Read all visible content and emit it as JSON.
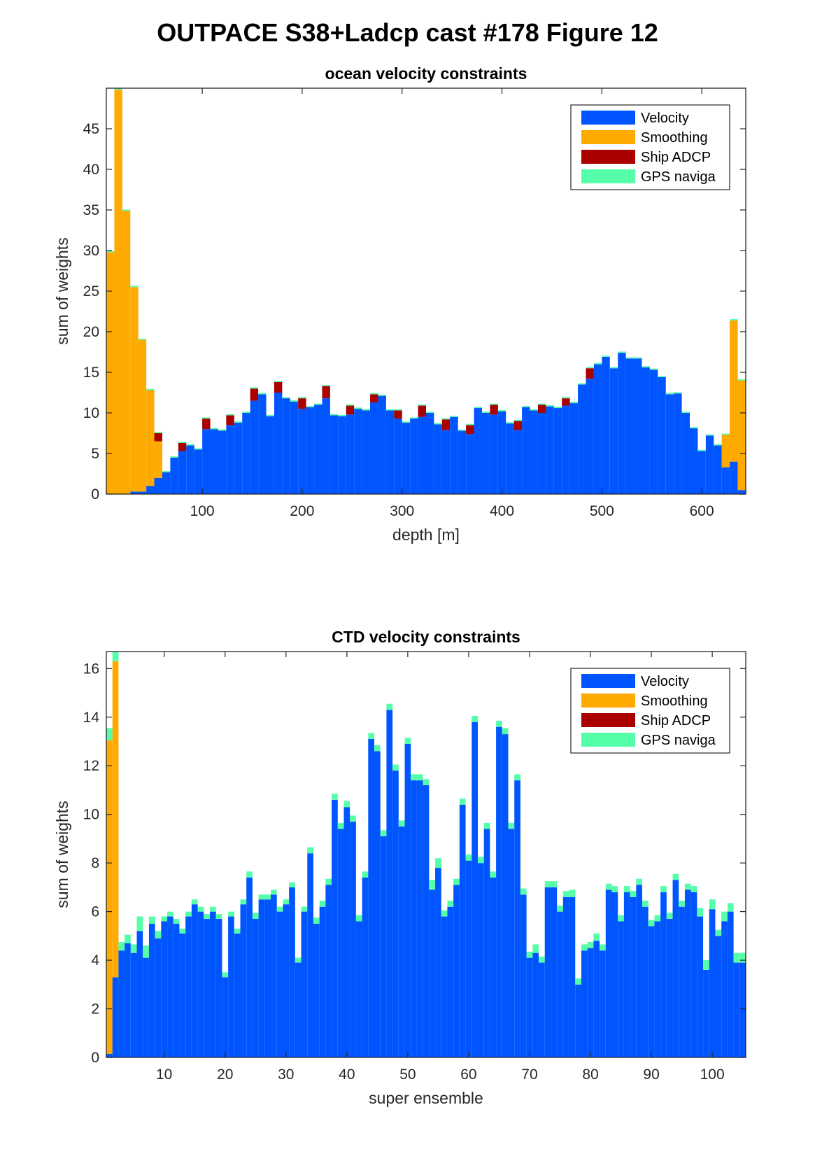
{
  "figure_title": "OUTPACE S38+Ladcp cast #178  Figure 12",
  "colors": {
    "velocity": "#0055ff",
    "smoothing": "#ffaa00",
    "ship_adcp": "#aa0000",
    "gps": "#55ffaa"
  },
  "legend_labels": [
    "Velocity",
    "Smoothing",
    "Ship ADCP",
    "GPS naviga"
  ],
  "chart_data": [
    {
      "type": "bar",
      "stacked": true,
      "title": "ocean velocity constraints",
      "xlabel": "depth [m]",
      "ylabel": "sum of weights",
      "xlim": [
        4,
        644
      ],
      "ylim": [
        0,
        50
      ],
      "xticks": [
        100,
        200,
        300,
        400,
        500,
        600
      ],
      "yticks": [
        0,
        5,
        10,
        15,
        20,
        25,
        30,
        35,
        40,
        45
      ],
      "bar_width": 8,
      "legend_location": "top-right",
      "x": [
        8,
        16,
        24,
        32,
        40,
        48,
        56,
        64,
        72,
        80,
        88,
        96,
        104,
        112,
        120,
        128,
        136,
        144,
        152,
        160,
        168,
        176,
        184,
        192,
        200,
        208,
        216,
        224,
        232,
        240,
        248,
        256,
        264,
        272,
        280,
        288,
        296,
        304,
        312,
        320,
        328,
        336,
        344,
        352,
        360,
        368,
        376,
        384,
        392,
        400,
        408,
        416,
        424,
        432,
        440,
        448,
        456,
        464,
        472,
        480,
        488,
        496,
        504,
        512,
        520,
        528,
        536,
        544,
        552,
        560,
        568,
        576,
        584,
        592,
        600,
        608,
        616,
        624,
        632,
        640
      ],
      "series": [
        {
          "name": "Velocity",
          "values": [
            0,
            0,
            0,
            0.3,
            0.3,
            1.0,
            2.0,
            2.7,
            4.5,
            5.3,
            6.0,
            5.5,
            8.0,
            8.0,
            7.8,
            8.5,
            8.8,
            10.0,
            11.5,
            12.3,
            9.6,
            12.5,
            11.8,
            11.4,
            10.5,
            10.7,
            11.0,
            11.8,
            9.7,
            9.6,
            9.8,
            10.5,
            10.3,
            11.3,
            12.1,
            10.3,
            9.3,
            8.8,
            9.3,
            9.5,
            10.0,
            8.6,
            7.9,
            9.5,
            7.8,
            7.4,
            10.6,
            10.0,
            9.8,
            10.2,
            8.7,
            7.9,
            10.7,
            10.3,
            10.0,
            10.8,
            10.6,
            10.9,
            11.2,
            13.5,
            14.2,
            16.0,
            16.9,
            15.5,
            17.4,
            16.7,
            16.7,
            15.6,
            15.3,
            14.4,
            12.3,
            12.4,
            10.0,
            8.1,
            5.3,
            7.2,
            6.0,
            3.3,
            4.0,
            0.5
          ],
          "labels_note": ""
        },
        {
          "name": "Smoothing",
          "values": [
            29.8,
            49.8,
            34.9,
            25.2,
            18.7,
            11.8,
            4.5,
            0,
            0,
            0,
            0,
            0,
            0,
            0,
            0,
            0,
            0,
            0,
            0,
            0,
            0,
            0,
            0,
            0,
            0,
            0,
            0,
            0,
            0,
            0,
            0,
            0,
            0,
            0,
            0,
            0,
            0,
            0,
            0,
            0,
            0,
            0,
            0,
            0,
            0,
            0,
            0,
            0,
            0,
            0,
            0,
            0,
            0,
            0,
            0,
            0,
            0,
            0,
            0,
            0,
            0,
            0,
            0,
            0,
            0,
            0,
            0,
            0,
            0,
            0,
            0,
            0,
            0,
            0,
            0,
            0,
            0,
            4.0,
            17.4,
            13.5
          ]
        },
        {
          "name": "Ship ADCP",
          "values": [
            0,
            0,
            0,
            0,
            0,
            0,
            1.0,
            0,
            0,
            1.0,
            0,
            0,
            1.3,
            0,
            0,
            1.2,
            0,
            0,
            1.5,
            0,
            0,
            1.3,
            0,
            0,
            1.3,
            0,
            0,
            1.5,
            0,
            0,
            1.1,
            0,
            0,
            1.0,
            0,
            0,
            1.0,
            0,
            0,
            1.4,
            0,
            0,
            1.3,
            0,
            0,
            1.1,
            0,
            0,
            1.2,
            0,
            0,
            1.1,
            0,
            0,
            1.0,
            0,
            0,
            0.9,
            0,
            0,
            1.3,
            0,
            0,
            0,
            0,
            0,
            0,
            0,
            0,
            0,
            0,
            0,
            0,
            0,
            0,
            0,
            0,
            0,
            0,
            0
          ]
        },
        {
          "name": "GPS naviga",
          "values": [
            0.15,
            0.15,
            0.15,
            0.15,
            0.15,
            0.15,
            0.15,
            0.15,
            0.15,
            0.15,
            0.15,
            0.15,
            0.15,
            0.15,
            0.15,
            0.15,
            0.15,
            0.15,
            0.15,
            0.15,
            0.15,
            0.15,
            0.15,
            0.15,
            0.15,
            0.15,
            0.15,
            0.15,
            0.15,
            0.15,
            0.15,
            0.15,
            0.15,
            0.15,
            0.15,
            0.15,
            0.15,
            0.15,
            0.15,
            0.15,
            0.15,
            0.15,
            0.15,
            0.15,
            0.15,
            0.15,
            0.15,
            0.15,
            0.15,
            0.15,
            0.15,
            0.15,
            0.15,
            0.15,
            0.15,
            0.15,
            0.15,
            0.15,
            0.15,
            0.15,
            0.15,
            0.15,
            0.15,
            0.15,
            0.15,
            0.15,
            0.15,
            0.15,
            0.15,
            0.15,
            0.15,
            0.15,
            0.15,
            0.15,
            0.15,
            0.15,
            0.15,
            0.15,
            0.15,
            0.15
          ]
        }
      ]
    },
    {
      "type": "bar",
      "stacked": true,
      "title": "CTD velocity constraints",
      "xlabel": "super ensemble",
      "ylabel": "sum of weights",
      "xlim": [
        0.5,
        105.5
      ],
      "ylim": [
        0,
        16.7
      ],
      "xticks": [
        10,
        20,
        30,
        40,
        50,
        60,
        70,
        80,
        90,
        100
      ],
      "yticks": [
        0,
        2,
        4,
        6,
        8,
        10,
        12,
        14,
        16
      ],
      "bar_width": 1,
      "legend_location": "top-right",
      "x": [
        1,
        2,
        3,
        4,
        5,
        6,
        7,
        8,
        9,
        10,
        11,
        12,
        13,
        14,
        15,
        16,
        17,
        18,
        19,
        20,
        21,
        22,
        23,
        24,
        25,
        26,
        27,
        28,
        29,
        30,
        31,
        32,
        33,
        34,
        35,
        36,
        37,
        38,
        39,
        40,
        41,
        42,
        43,
        44,
        45,
        46,
        47,
        48,
        49,
        50,
        51,
        52,
        53,
        54,
        55,
        56,
        57,
        58,
        59,
        60,
        61,
        62,
        63,
        64,
        65,
        66,
        67,
        68,
        69,
        70,
        71,
        72,
        73,
        74,
        75,
        76,
        77,
        78,
        79,
        80,
        81,
        82,
        83,
        84,
        85,
        86,
        87,
        88,
        89,
        90,
        91,
        92,
        93,
        94,
        95,
        96,
        97,
        98,
        99,
        100,
        101,
        102,
        103,
        104,
        105
      ],
      "series": [
        {
          "name": "Velocity",
          "values": [
            0.15,
            3.3,
            4.4,
            4.7,
            4.3,
            5.2,
            4.1,
            5.5,
            4.9,
            5.6,
            5.8,
            5.5,
            5.1,
            5.8,
            6.3,
            6.0,
            5.7,
            6.0,
            5.7,
            3.3,
            5.8,
            5.1,
            6.3,
            7.4,
            5.7,
            6.5,
            6.5,
            6.7,
            6.0,
            6.3,
            7.0,
            3.9,
            6.0,
            8.4,
            5.5,
            6.2,
            7.1,
            10.6,
            9.4,
            10.3,
            9.7,
            5.6,
            7.4,
            13.1,
            12.6,
            9.1,
            14.3,
            11.8,
            9.5,
            12.9,
            11.4,
            11.4,
            11.2,
            6.9,
            7.8,
            5.8,
            6.2,
            7.1,
            10.4,
            8.1,
            13.8,
            8.0,
            9.4,
            7.4,
            13.6,
            13.3,
            9.4,
            11.4,
            6.7,
            4.1,
            4.3,
            3.9,
            7.0,
            7.0,
            6.0,
            6.6,
            6.6,
            3.0,
            4.4,
            4.5,
            4.8,
            4.4,
            6.9,
            6.8,
            5.6,
            6.8,
            6.6,
            7.1,
            6.2,
            5.4,
            5.6,
            6.8,
            5.7,
            7.3,
            6.2,
            6.9,
            6.8,
            5.8,
            3.6,
            6.1,
            5.0,
            5.6,
            6.0,
            3.9,
            3.9
          ],
          "labels_note": ""
        },
        {
          "name": "Smoothing",
          "values": [
            12.9,
            13.0,
            0,
            0,
            0,
            0,
            0,
            0,
            0,
            0,
            0,
            0,
            0,
            0,
            0,
            0,
            0,
            0,
            0,
            0,
            0,
            0,
            0,
            0,
            0,
            0,
            0,
            0,
            0,
            0,
            0,
            0,
            0,
            0,
            0,
            0,
            0,
            0,
            0,
            0,
            0,
            0,
            0,
            0,
            0,
            0,
            0,
            0,
            0,
            0,
            0,
            0,
            0,
            0,
            0,
            0,
            0,
            0,
            0,
            0,
            0,
            0,
            0,
            0,
            0,
            0,
            0,
            0,
            0,
            0,
            0,
            0,
            0,
            0,
            0,
            0,
            0,
            0,
            0,
            0,
            0,
            0,
            0,
            0,
            0,
            0,
            0,
            0,
            0,
            0,
            0,
            0,
            0,
            0,
            0,
            0,
            0,
            0,
            0,
            0,
            0,
            0,
            0,
            0,
            0
          ]
        },
        {
          "name": "Ship ADCP",
          "values": [
            0,
            0,
            0,
            0,
            0,
            0,
            0,
            0,
            0,
            0,
            0,
            0,
            0,
            0,
            0,
            0,
            0,
            0,
            0,
            0,
            0,
            0,
            0,
            0,
            0,
            0,
            0,
            0,
            0,
            0,
            0,
            0,
            0,
            0,
            0,
            0,
            0,
            0,
            0,
            0,
            0,
            0,
            0,
            0,
            0,
            0,
            0,
            0,
            0,
            0,
            0,
            0,
            0,
            0,
            0,
            0,
            0,
            0,
            0,
            0,
            0,
            0,
            0,
            0,
            0,
            0,
            0,
            0,
            0,
            0,
            0,
            0,
            0,
            0,
            0,
            0,
            0,
            0,
            0,
            0,
            0,
            0,
            0,
            0,
            0,
            0,
            0,
            0,
            0,
            0,
            0,
            0,
            0,
            0,
            0,
            0,
            0,
            0,
            0,
            0,
            0,
            0,
            0,
            0,
            0
          ]
        },
        {
          "name": "GPS naviga",
          "values": [
            0.5,
            0.5,
            0.35,
            0.35,
            0.35,
            0.6,
            0.5,
            0.3,
            0.3,
            0.2,
            0.2,
            0.2,
            0.2,
            0.2,
            0.2,
            0.2,
            0.2,
            0.2,
            0.2,
            0.2,
            0.2,
            0.2,
            0.2,
            0.25,
            0.25,
            0.2,
            0.2,
            0.2,
            0.2,
            0.2,
            0.2,
            0.2,
            0.2,
            0.25,
            0.25,
            0.25,
            0.25,
            0.25,
            0.25,
            0.25,
            0.25,
            0.25,
            0.25,
            0.25,
            0.25,
            0.25,
            0.25,
            0.25,
            0.25,
            0.25,
            0.25,
            0.25,
            0.25,
            0.4,
            0.4,
            0.25,
            0.25,
            0.25,
            0.25,
            0.25,
            0.25,
            0.25,
            0.25,
            0.25,
            0.25,
            0.25,
            0.25,
            0.25,
            0.25,
            0.25,
            0.35,
            0.25,
            0.25,
            0.25,
            0.25,
            0.25,
            0.3,
            0.25,
            0.25,
            0.25,
            0.3,
            0.25,
            0.25,
            0.25,
            0.25,
            0.25,
            0.25,
            0.25,
            0.25,
            0.25,
            0.25,
            0.25,
            0.25,
            0.25,
            0.25,
            0.25,
            0.25,
            0.35,
            0.4,
            0.4,
            0.25,
            0.4,
            0.35,
            0.4,
            0.4
          ]
        }
      ]
    }
  ]
}
